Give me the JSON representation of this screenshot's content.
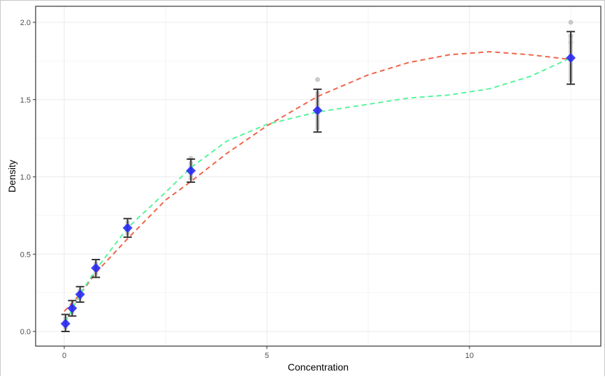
{
  "chart_data": {
    "type": "scatter",
    "title": "",
    "xlabel": "Concentration",
    "ylabel": "Density",
    "xlim": [
      -1.5,
      13.2
    ],
    "ylim": [
      -0.09,
      2.09
    ],
    "grid": true,
    "legend": "none",
    "x_ticks": [
      0,
      5,
      10
    ],
    "x_tick_labels": [
      "0",
      "5",
      "10"
    ],
    "x_minor": [
      2.5,
      7.5,
      12.5
    ],
    "y_ticks": [
      0,
      0.5,
      1.0,
      1.5,
      2.0
    ],
    "y_tick_labels": [
      "0.0",
      "0.5",
      "1.0",
      "1.5",
      "2.0"
    ],
    "y_minor": [
      0.25,
      0.75,
      1.25,
      1.75
    ],
    "colors": {
      "mean_point": "#2b2bf5",
      "error_bar": "#333333",
      "raw_points": "#bdbdbd",
      "fit_red": "#f0644a",
      "fit_green": "#56f59a",
      "grid": "#ebebeb",
      "panel_border": "#333333"
    },
    "means": {
      "x": [
        0.03,
        0.195,
        0.39,
        0.78,
        1.5625,
        3.125,
        6.25,
        12.5
      ],
      "y": [
        0.05,
        0.15,
        0.24,
        0.41,
        0.67,
        1.04,
        1.43,
        1.77
      ],
      "ymin": [
        0.0,
        0.1,
        0.19,
        0.35,
        0.61,
        0.966,
        1.29,
        1.6
      ],
      "ymax": [
        0.11,
        0.2,
        0.29,
        0.465,
        0.73,
        1.115,
        1.567,
        1.94
      ]
    },
    "raw_points": [
      {
        "x": 6.25,
        "y": 1.63
      },
      {
        "x": 12.5,
        "y": 2.0
      },
      {
        "x": 12.5,
        "y": 1.91
      },
      {
        "x": 12.5,
        "y": 1.87
      },
      {
        "x": 3.125,
        "y": 1.12
      }
    ],
    "series": [
      {
        "name": "fit-red",
        "style": "dashed",
        "x": [
          0.0,
          0.39,
          0.78,
          1.5625,
          2.5,
          3.125,
          4.0,
          5.0,
          6.25,
          7.5,
          8.5,
          9.5,
          10.5,
          11.5,
          12.5
        ],
        "y": [
          0.13,
          0.24,
          0.38,
          0.6,
          0.85,
          0.97,
          1.15,
          1.33,
          1.52,
          1.66,
          1.74,
          1.79,
          1.81,
          1.79,
          1.76
        ]
      },
      {
        "name": "fit-green",
        "style": "dashed",
        "x": [
          0.03,
          0.39,
          0.78,
          1.5625,
          2.5,
          3.125,
          4.0,
          5.0,
          6.25,
          7.5,
          8.5,
          9.5,
          10.5,
          11.5,
          12.5
        ],
        "y": [
          0.06,
          0.24,
          0.4,
          0.67,
          0.9,
          1.06,
          1.23,
          1.34,
          1.42,
          1.47,
          1.51,
          1.53,
          1.57,
          1.65,
          1.77
        ]
      }
    ]
  }
}
